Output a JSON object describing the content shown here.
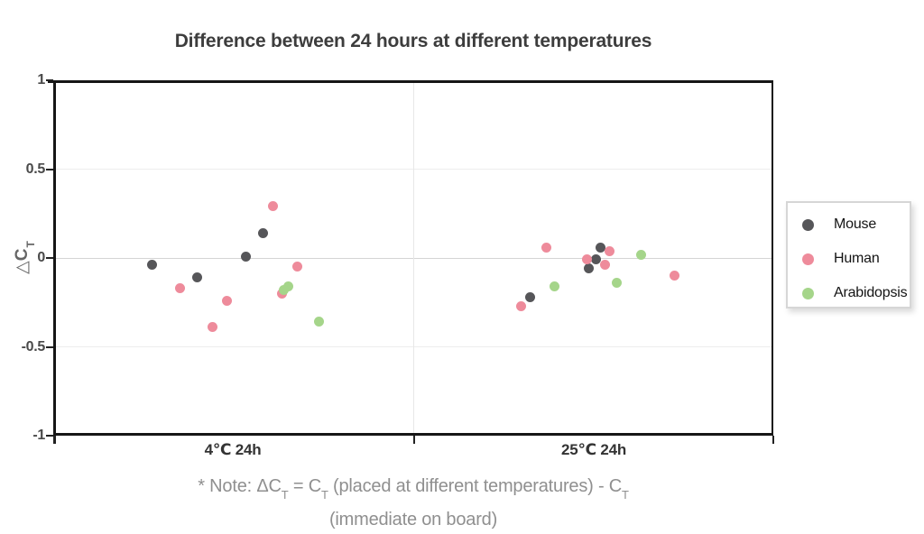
{
  "title": "Difference between 24 hours at different temperatures",
  "y_axis": {
    "label_main": "△C",
    "label_sub": "T",
    "ticks": [
      {
        "label": "1",
        "value": 1
      },
      {
        "label": "0.5",
        "value": 0.5
      },
      {
        "label": "0",
        "value": 0
      },
      {
        "label": "-0.5",
        "value": -0.5
      },
      {
        "label": "-1",
        "value": -1
      }
    ]
  },
  "x_axis": {
    "categories": [
      {
        "label": "4℃ 24h"
      },
      {
        "label": "25℃ 24h"
      }
    ]
  },
  "legend": {
    "items": [
      {
        "label": "Mouse",
        "color": "#565659"
      },
      {
        "label": "Human",
        "color": "#ee8b9b"
      },
      {
        "label": "Arabidopsis",
        "color": "#a5d58a"
      }
    ]
  },
  "note": {
    "parts": [
      {
        "text": "* Note: ΔC",
        "sub": "T"
      },
      {
        "text": " = C",
        "sub": "T"
      },
      {
        "text": " (placed at different temperatures) - C",
        "sub": "T"
      }
    ],
    "line2": "(immediate on board)"
  },
  "colors": {
    "grid_minor": "#ededed",
    "grid_zero": "#d4d4d4",
    "grid_vertical": "#e7e7e7"
  },
  "chart_data": {
    "type": "scatter",
    "title": "Difference between 24 hours at different temperatures",
    "xlabel": "",
    "ylabel": "ΔCT",
    "ylim": [
      -1,
      1
    ],
    "yticks": [
      1,
      0.5,
      0,
      -0.5,
      -1
    ],
    "grid": true,
    "legend_position": "right",
    "categories": [
      "4℃ 24h",
      "25℃ 24h"
    ],
    "series": [
      {
        "name": "Mouse",
        "color": "#565659",
        "points": [
          {
            "category": "4℃ 24h",
            "value": -0.04,
            "dx": -90
          },
          {
            "category": "4℃ 24h",
            "value": -0.11,
            "dx": -40
          },
          {
            "category": "4℃ 24h",
            "value": 0.01,
            "dx": 14
          },
          {
            "category": "4℃ 24h",
            "value": 0.14,
            "dx": 33
          },
          {
            "category": "25℃ 24h",
            "value": 0.06,
            "dx": 7
          },
          {
            "category": "25℃ 24h",
            "value": -0.01,
            "dx": 2
          },
          {
            "category": "25℃ 24h",
            "value": -0.06,
            "dx": -6
          },
          {
            "category": "25℃ 24h",
            "value": -0.22,
            "dx": -71
          }
        ]
      },
      {
        "name": "Human",
        "color": "#ee8b9b",
        "points": [
          {
            "category": "4℃ 24h",
            "value": 0.29,
            "dx": 44
          },
          {
            "category": "4℃ 24h",
            "value": -0.05,
            "dx": 71
          },
          {
            "category": "4℃ 24h",
            "value": -0.17,
            "dx": -59
          },
          {
            "category": "4℃ 24h",
            "value": -0.2,
            "dx": 54
          },
          {
            "category": "4℃ 24h",
            "value": -0.24,
            "dx": -7
          },
          {
            "category": "4℃ 24h",
            "value": -0.39,
            "dx": -23
          },
          {
            "category": "25℃ 24h",
            "value": 0.06,
            "dx": -53
          },
          {
            "category": "25℃ 24h",
            "value": 0.04,
            "dx": 17
          },
          {
            "category": "25℃ 24h",
            "value": -0.01,
            "dx": -8
          },
          {
            "category": "25℃ 24h",
            "value": -0.04,
            "dx": 12
          },
          {
            "category": "25℃ 24h",
            "value": -0.1,
            "dx": 89
          },
          {
            "category": "25℃ 24h",
            "value": -0.27,
            "dx": -81
          }
        ]
      },
      {
        "name": "Arabidopsis",
        "color": "#a5d58a",
        "points": [
          {
            "category": "4℃ 24h",
            "value": -0.16,
            "dx": 61
          },
          {
            "category": "4℃ 24h",
            "value": -0.18,
            "dx": 56
          },
          {
            "category": "4℃ 24h",
            "value": -0.36,
            "dx": 95
          },
          {
            "category": "25℃ 24h",
            "value": 0.02,
            "dx": 52
          },
          {
            "category": "25℃ 24h",
            "value": -0.16,
            "dx": -44
          },
          {
            "category": "25℃ 24h",
            "value": -0.14,
            "dx": 25
          }
        ]
      }
    ]
  }
}
